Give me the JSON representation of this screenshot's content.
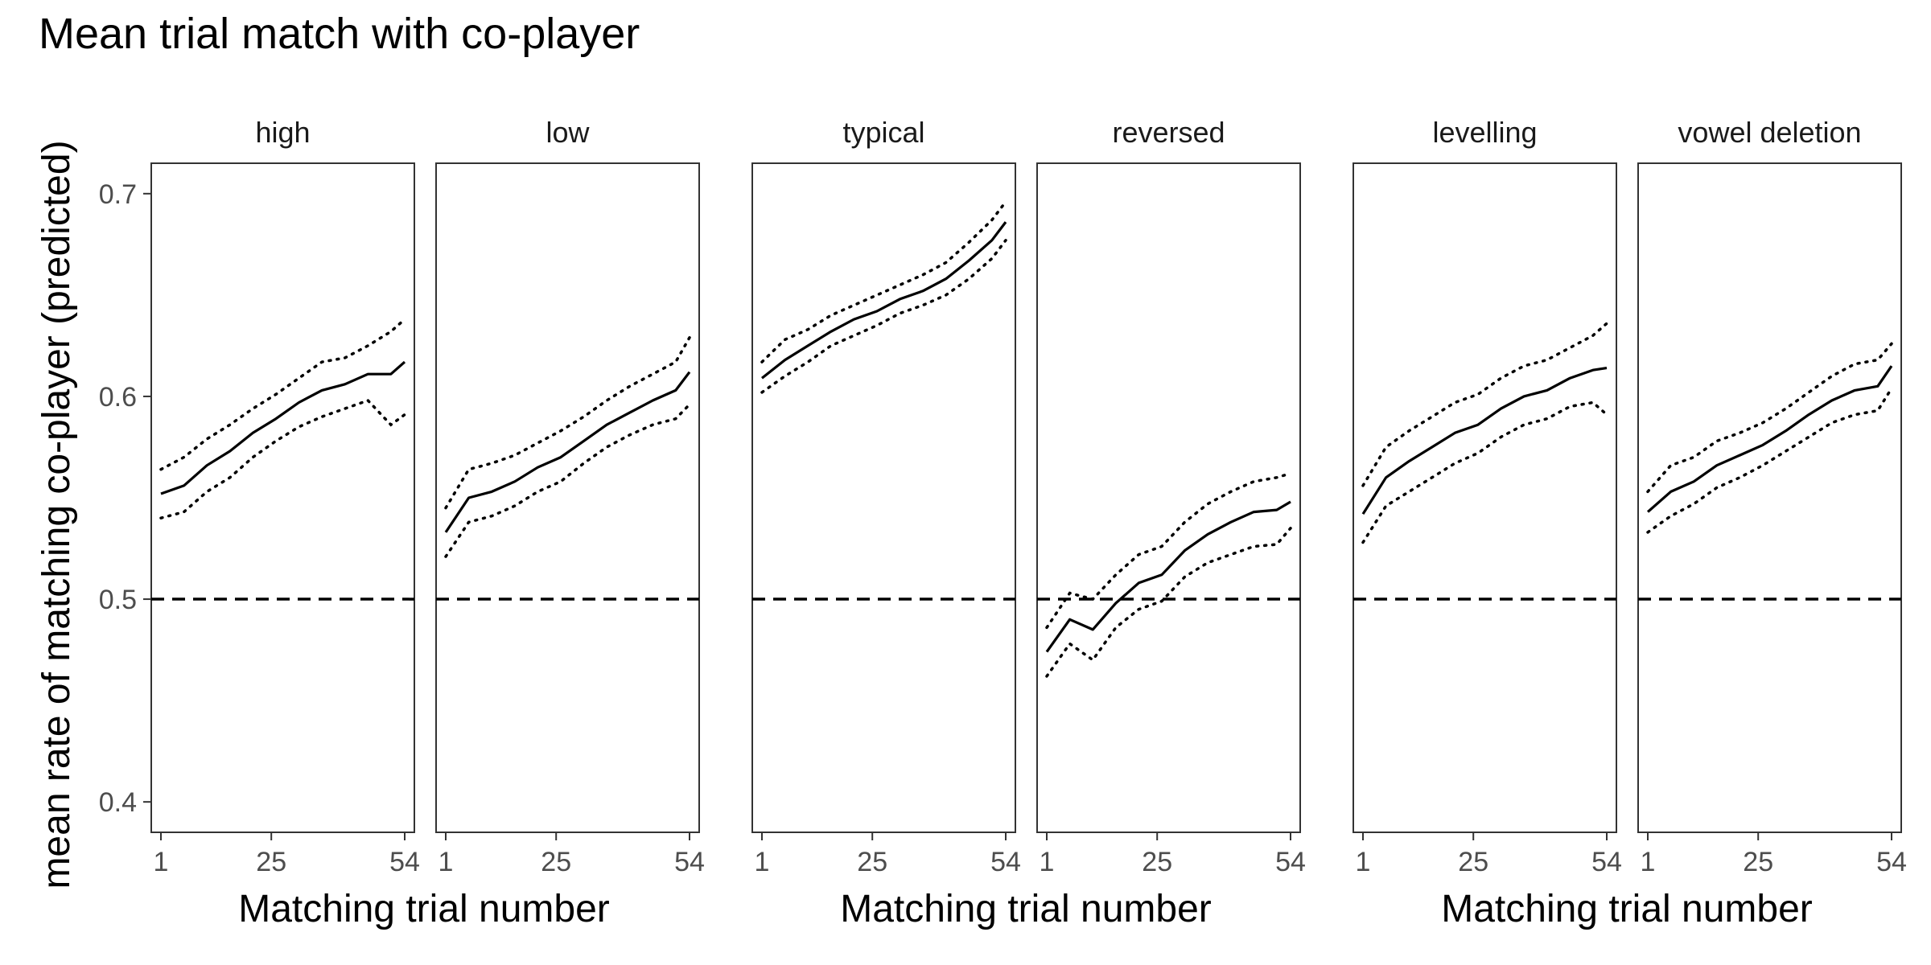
{
  "title": "Mean trial match with co-player",
  "chart_data": {
    "type": "line",
    "title": "Mean trial match with co-player",
    "ylabel": "mean rate of matching co-player (predicted)",
    "xlabel": "Matching trial number",
    "xlabels": [
      "Matching trial number",
      "Matching trial number",
      "Matching trial number"
    ],
    "ylim": [
      0.385,
      0.715
    ],
    "xlim": [
      1,
      54
    ],
    "yticks": [
      0.4,
      0.5,
      0.6,
      0.7
    ],
    "ytick_labels": [
      "0.4",
      "0.5",
      "0.6",
      "0.7"
    ],
    "xticks": [
      1,
      25,
      54
    ],
    "xtick_labels": [
      "1",
      "25",
      "54"
    ],
    "reference_line": 0.5,
    "grid": false,
    "legend": "none",
    "panels": [
      {
        "label": "high",
        "x": [
          1,
          6,
          11,
          16,
          21,
          26,
          31,
          36,
          41,
          46,
          51,
          54
        ],
        "mean": [
          0.552,
          0.556,
          0.566,
          0.573,
          0.582,
          0.589,
          0.597,
          0.603,
          0.606,
          0.611,
          0.611,
          0.617
        ],
        "lower": [
          0.54,
          0.543,
          0.553,
          0.56,
          0.57,
          0.578,
          0.585,
          0.59,
          0.594,
          0.598,
          0.586,
          0.591
        ],
        "upper": [
          0.564,
          0.57,
          0.579,
          0.586,
          0.594,
          0.601,
          0.609,
          0.617,
          0.619,
          0.625,
          0.632,
          0.638
        ]
      },
      {
        "label": "low",
        "x": [
          1,
          6,
          11,
          16,
          21,
          26,
          31,
          36,
          41,
          46,
          51,
          54
        ],
        "mean": [
          0.533,
          0.55,
          0.553,
          0.558,
          0.565,
          0.57,
          0.578,
          0.586,
          0.592,
          0.598,
          0.603,
          0.612
        ],
        "lower": [
          0.521,
          0.538,
          0.541,
          0.546,
          0.553,
          0.558,
          0.567,
          0.575,
          0.581,
          0.586,
          0.589,
          0.596
        ],
        "upper": [
          0.545,
          0.564,
          0.567,
          0.571,
          0.577,
          0.583,
          0.59,
          0.598,
          0.605,
          0.611,
          0.617,
          0.629
        ]
      },
      {
        "label": "typical",
        "x": [
          1,
          6,
          11,
          16,
          21,
          26,
          31,
          36,
          41,
          46,
          51,
          54
        ],
        "mean": [
          0.609,
          0.618,
          0.625,
          0.632,
          0.638,
          0.642,
          0.648,
          0.652,
          0.658,
          0.667,
          0.677,
          0.686
        ],
        "lower": [
          0.602,
          0.61,
          0.617,
          0.625,
          0.63,
          0.635,
          0.641,
          0.645,
          0.65,
          0.658,
          0.668,
          0.677
        ],
        "upper": [
          0.617,
          0.628,
          0.633,
          0.64,
          0.645,
          0.65,
          0.655,
          0.66,
          0.666,
          0.676,
          0.687,
          0.696
        ]
      },
      {
        "label": "reversed",
        "x": [
          1,
          6,
          11,
          16,
          21,
          26,
          31,
          36,
          41,
          46,
          51,
          54
        ],
        "mean": [
          0.474,
          0.49,
          0.485,
          0.498,
          0.508,
          0.512,
          0.524,
          0.532,
          0.538,
          0.543,
          0.544,
          0.548
        ],
        "lower": [
          0.462,
          0.478,
          0.47,
          0.486,
          0.495,
          0.499,
          0.511,
          0.518,
          0.522,
          0.526,
          0.527,
          0.535
        ],
        "upper": [
          0.486,
          0.503,
          0.5,
          0.512,
          0.522,
          0.526,
          0.538,
          0.547,
          0.553,
          0.558,
          0.56,
          0.562
        ]
      },
      {
        "label": "levelling",
        "x": [
          1,
          6,
          11,
          16,
          21,
          26,
          31,
          36,
          41,
          46,
          51,
          54
        ],
        "mean": [
          0.542,
          0.56,
          0.568,
          0.575,
          0.582,
          0.586,
          0.594,
          0.6,
          0.603,
          0.609,
          0.613,
          0.614
        ],
        "lower": [
          0.528,
          0.546,
          0.553,
          0.56,
          0.567,
          0.572,
          0.58,
          0.586,
          0.589,
          0.595,
          0.597,
          0.591
        ],
        "upper": [
          0.556,
          0.575,
          0.583,
          0.59,
          0.597,
          0.601,
          0.609,
          0.615,
          0.618,
          0.624,
          0.63,
          0.636
        ]
      },
      {
        "label": "vowel deletion",
        "x": [
          1,
          6,
          11,
          16,
          21,
          26,
          31,
          36,
          41,
          46,
          51,
          54
        ],
        "mean": [
          0.543,
          0.553,
          0.558,
          0.566,
          0.571,
          0.576,
          0.583,
          0.591,
          0.598,
          0.603,
          0.605,
          0.615
        ],
        "lower": [
          0.533,
          0.541,
          0.547,
          0.555,
          0.56,
          0.566,
          0.573,
          0.58,
          0.587,
          0.591,
          0.593,
          0.604
        ],
        "upper": [
          0.553,
          0.566,
          0.57,
          0.578,
          0.582,
          0.587,
          0.594,
          0.602,
          0.61,
          0.616,
          0.618,
          0.626
        ]
      }
    ]
  }
}
